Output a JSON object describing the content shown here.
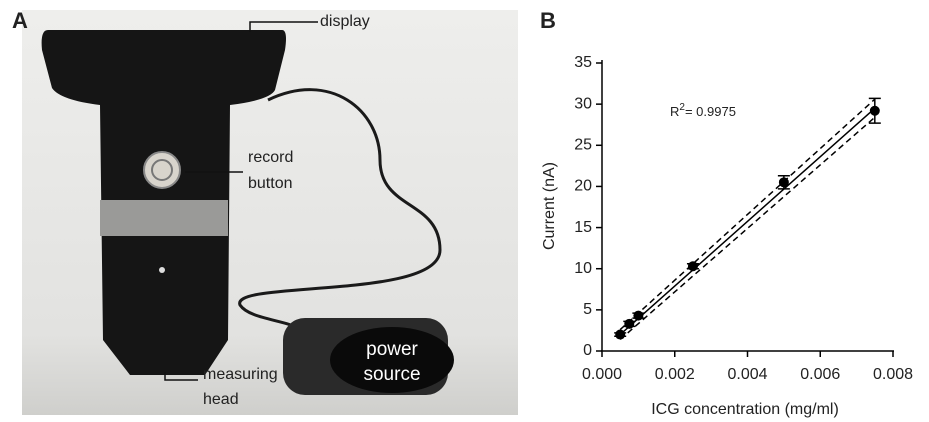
{
  "figure": {
    "panel_a": {
      "label": "A",
      "annotations": [
        "display",
        "record",
        "button",
        "measuring",
        "head",
        "power",
        "source"
      ]
    },
    "panel_b": {
      "label": "B"
    }
  },
  "chart_data": {
    "type": "scatter",
    "x_label": "ICG concentration (mg/ml)",
    "y_label": "Current (nA)",
    "annotation": {
      "base": "R",
      "sup": "2",
      "text": "= 0.9975"
    },
    "x": [
      0.0005,
      0.00075,
      0.001,
      0.0025,
      0.005,
      0.0075
    ],
    "values": [
      2.0,
      3.3,
      4.3,
      10.3,
      20.5,
      29.2
    ],
    "errors": [
      0.2,
      0.3,
      0.3,
      0.3,
      0.8,
      1.5
    ],
    "color": "#000000",
    "fit": {
      "x": [
        0.0005,
        0.0075
      ],
      "y": [
        2.0,
        29.5
      ],
      "upper": [
        2.6,
        30.6
      ],
      "lower": [
        1.4,
        28.4
      ]
    },
    "xlim": [
      0,
      0.008
    ],
    "ylim": [
      0,
      35
    ],
    "xticks": [
      {
        "value": 0,
        "label": "0.000"
      },
      {
        "value": 0.002,
        "label": "0.002"
      },
      {
        "value": 0.004,
        "label": "0.004"
      },
      {
        "value": 0.006,
        "label": "0.006"
      },
      {
        "value": 0.008,
        "label": "0.008"
      }
    ],
    "yticks": [
      0,
      5,
      10,
      15,
      20,
      25,
      30,
      35
    ]
  }
}
